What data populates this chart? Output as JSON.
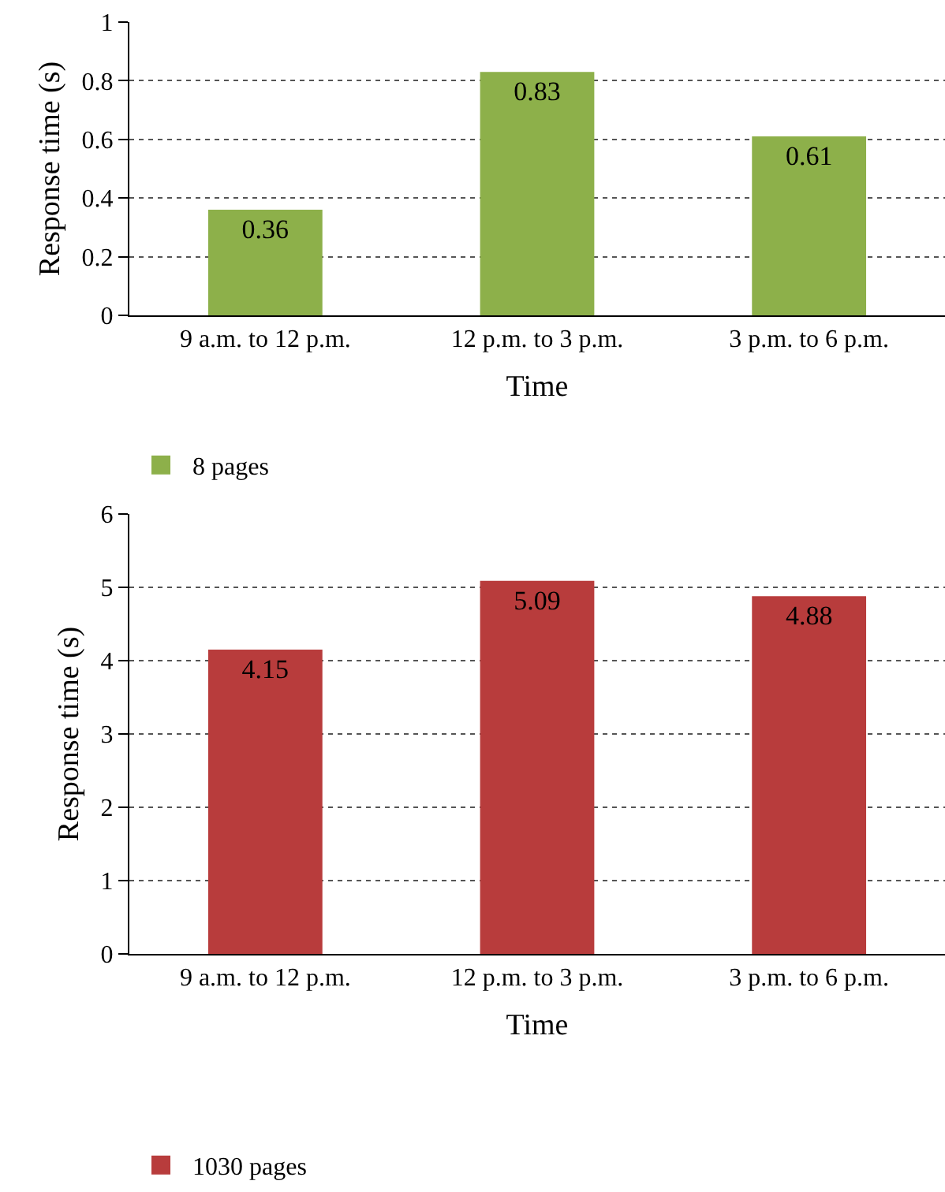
{
  "chart_data": [
    {
      "type": "bar",
      "categories": [
        "9 a.m. to 12 p.m.",
        "12 p.m. to 3 p.m.",
        "3 p.m. to 6 p.m."
      ],
      "xlabel": "Time",
      "ylabel": "Response time (s)",
      "series": [
        {
          "name": "8 pages",
          "color": "#8db04a",
          "values": [
            0.36,
            0.83,
            0.61
          ]
        }
      ],
      "ylim": [
        0,
        1
      ],
      "yticks": [
        0,
        0.2,
        0.4,
        0.6,
        0.8,
        1
      ],
      "grid": "y",
      "legend": "bottom left",
      "data_labels": true
    },
    {
      "type": "bar",
      "categories": [
        "9 a.m. to 12 p.m.",
        "12 p.m. to 3 p.m.",
        "3 p.m. to 6 p.m."
      ],
      "xlabel": "Time",
      "ylabel": "Response time (s)",
      "series": [
        {
          "name": "1030 pages",
          "color": "#b83c3c",
          "values": [
            4.15,
            5.09,
            4.88
          ]
        }
      ],
      "ylim": [
        0,
        6
      ],
      "yticks": [
        0,
        1,
        2,
        3,
        4,
        5,
        6
      ],
      "grid": "y",
      "legend": "bottom left",
      "data_labels": true
    }
  ]
}
